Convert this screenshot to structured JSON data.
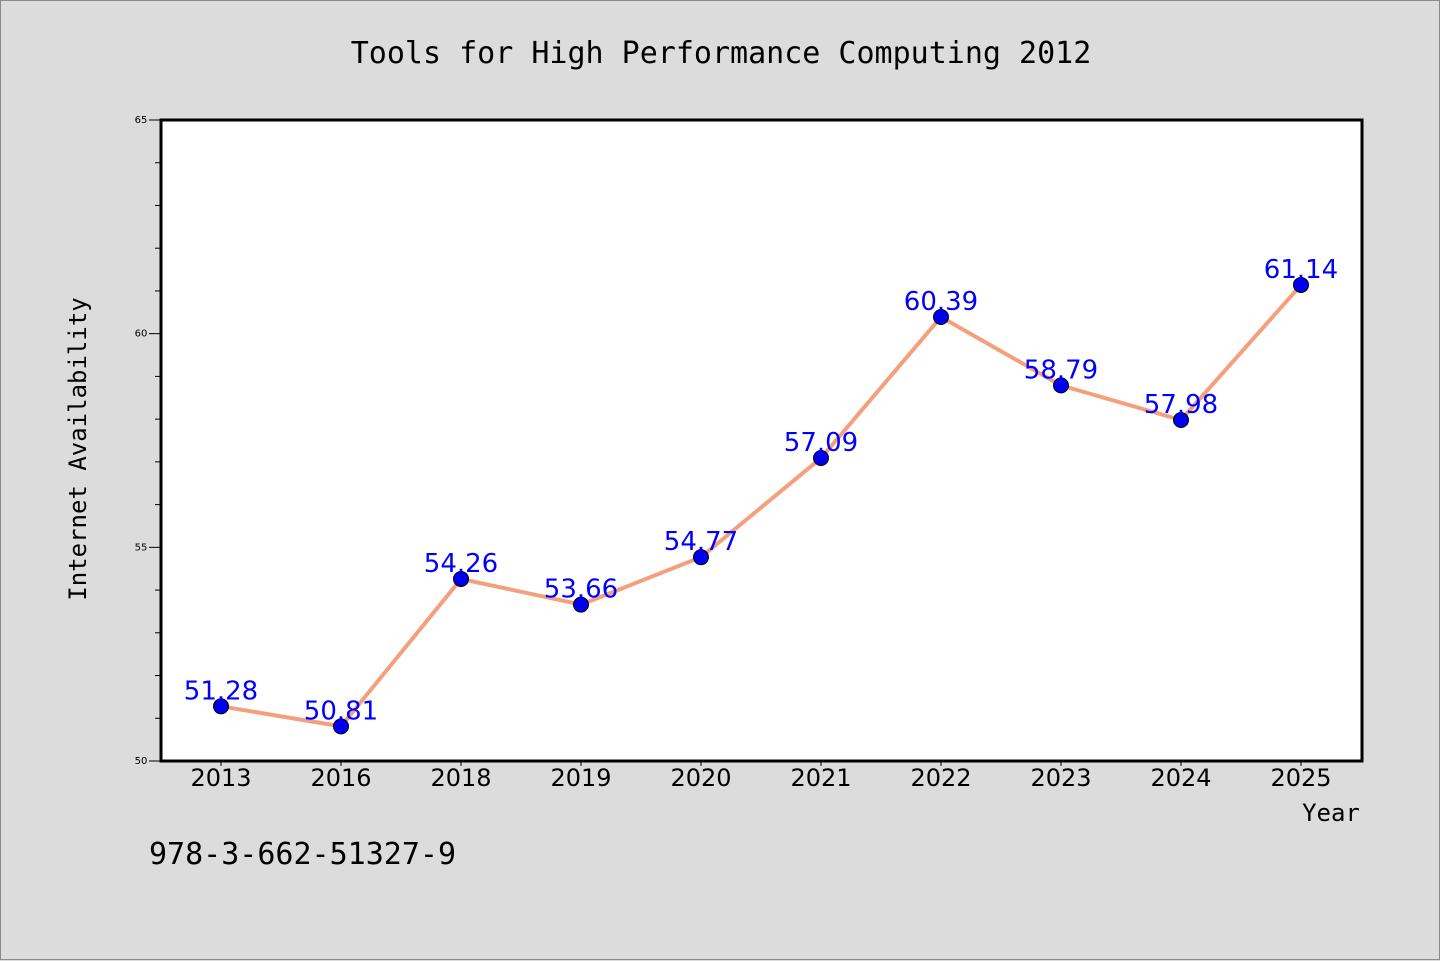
{
  "chart_data": {
    "type": "line",
    "title": "Tools for High Performance Computing 2012",
    "xlabel": "Year",
    "ylabel": "Internet Availability",
    "categories": [
      "2013",
      "2016",
      "2018",
      "2019",
      "2020",
      "2021",
      "2022",
      "2023",
      "2024",
      "2025"
    ],
    "values": [
      51.28,
      50.81,
      54.26,
      53.66,
      54.77,
      57.09,
      60.39,
      58.79,
      57.98,
      61.14
    ],
    "data_labels": [
      "51.28",
      "50.81",
      "54.26",
      "53.66",
      "54.77",
      "57.09",
      "60.39",
      "58.79",
      "57.98",
      "61.14"
    ],
    "ylim": [
      50,
      65
    ],
    "yticks": [
      "50",
      "55",
      "60",
      "65"
    ],
    "grid": false,
    "line_color": "#f4a07e",
    "marker_color": "#0000ee",
    "label_color": "#0000ff",
    "background": "#dcdcdc",
    "plot_background": "#ffffff"
  },
  "footer_code": "978-3-662-51327-9"
}
